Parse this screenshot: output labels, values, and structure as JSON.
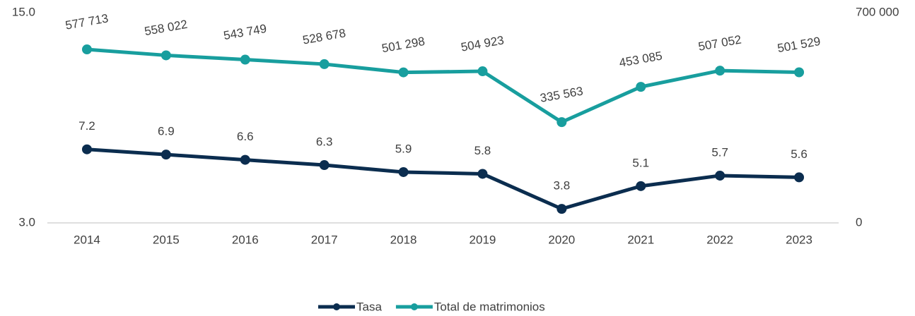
{
  "chart_data": {
    "type": "line",
    "categories": [
      "2014",
      "2015",
      "2016",
      "2017",
      "2018",
      "2019",
      "2020",
      "2021",
      "2022",
      "2023"
    ],
    "series": [
      {
        "name": "Tasa",
        "color": "#0b2d4f",
        "values": [
          7.2,
          6.9,
          6.6,
          6.3,
          5.9,
          5.8,
          3.8,
          5.1,
          5.7,
          5.6
        ]
      },
      {
        "name": "Total de matrimonios",
        "color": "#189e9e",
        "axis": "y2",
        "values": [
          577713,
          558022,
          543749,
          528678,
          501298,
          504923,
          335563,
          453085,
          507052,
          501529
        ],
        "value_labels": [
          "577 713",
          "558 022",
          "543 749",
          "528 678",
          "501 298",
          "504 923",
          "335 563",
          "453 085",
          "507 052",
          "501 529"
        ]
      }
    ],
    "ylim": [
      3,
      15
    ],
    "yticks": [
      {
        "value": 3,
        "label": "3.0"
      },
      {
        "value": 15,
        "label": "15.0"
      }
    ],
    "y2lim": [
      0,
      700000
    ],
    "y2ticks": [
      0,
      {
        "value": 700000,
        "label": "700 000"
      }
    ],
    "legend": "bottom"
  }
}
